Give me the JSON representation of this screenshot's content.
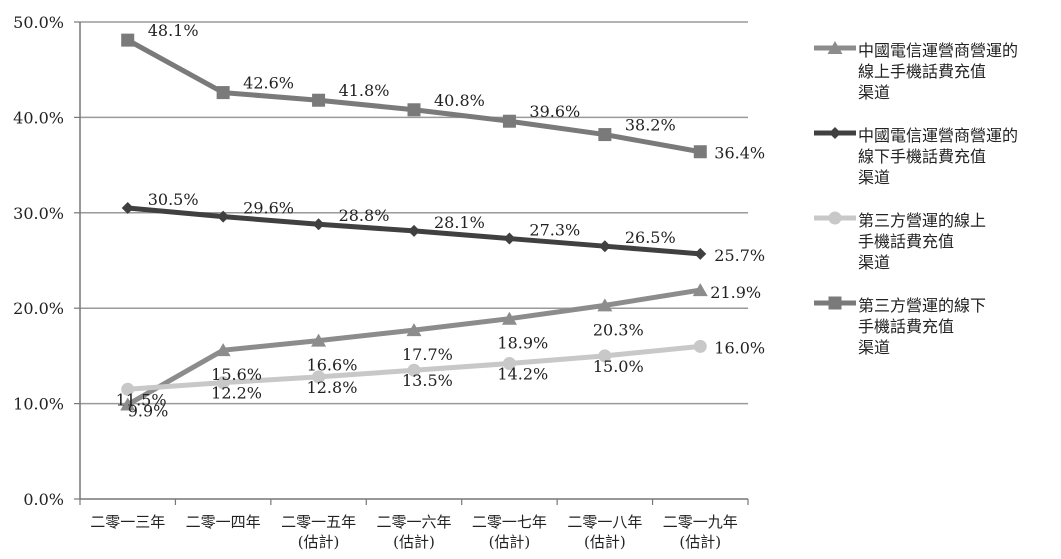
{
  "chart_data": {
    "type": "line",
    "categories": [
      "二零一三年",
      "二零一四年",
      "二零一五年\n(估計)",
      "二零一六年\n(估計)",
      "二零一七年\n(估計)",
      "二零一八年\n(估計)",
      "二零一九年\n(估計)"
    ],
    "ylim": [
      0,
      50
    ],
    "yticks": [
      "0.0%",
      "10.0%",
      "20.0%",
      "30.0%",
      "40.0%",
      "50.0%"
    ],
    "grid": true,
    "legend_position": "right",
    "series": [
      {
        "name": "中國電信運營商營運的\n線上手機話費充值\n渠道",
        "marker": "triangle",
        "color": "#8c8c8c",
        "values": [
          9.9,
          15.6,
          16.6,
          17.7,
          18.9,
          20.3,
          21.9
        ],
        "labels": [
          "9.9%",
          "15.6%",
          "16.6%",
          "17.7%",
          "18.9%",
          "20.3%",
          "21.9%"
        ]
      },
      {
        "name": "中國電信運營商營運的\n線下手機話費充值\n渠道",
        "marker": "diamond",
        "color": "#404040",
        "values": [
          30.5,
          29.6,
          28.8,
          28.1,
          27.3,
          26.5,
          25.7
        ],
        "labels": [
          "30.5%",
          "29.6%",
          "28.8%",
          "28.1%",
          "27.3%",
          "26.5%",
          "25.7%"
        ]
      },
      {
        "name": "第三方營運的線上\n手機話費充值\n渠道",
        "marker": "circle",
        "color": "#c8c8c8",
        "values": [
          11.5,
          12.2,
          12.8,
          13.5,
          14.2,
          15.0,
          16.0
        ],
        "labels": [
          "11.5%",
          "12.2%",
          "12.8%",
          "13.5%",
          "14.2%",
          "15.0%",
          "16.0%"
        ]
      },
      {
        "name": "第三方營運的線下\n手機話費充值\n渠道",
        "marker": "square",
        "color": "#7a7a7a",
        "values": [
          48.1,
          42.6,
          41.8,
          40.8,
          39.6,
          38.2,
          36.4
        ],
        "labels": [
          "48.1%",
          "42.6%",
          "41.8%",
          "40.8%",
          "39.6%",
          "38.2%",
          "36.4%"
        ]
      }
    ]
  }
}
